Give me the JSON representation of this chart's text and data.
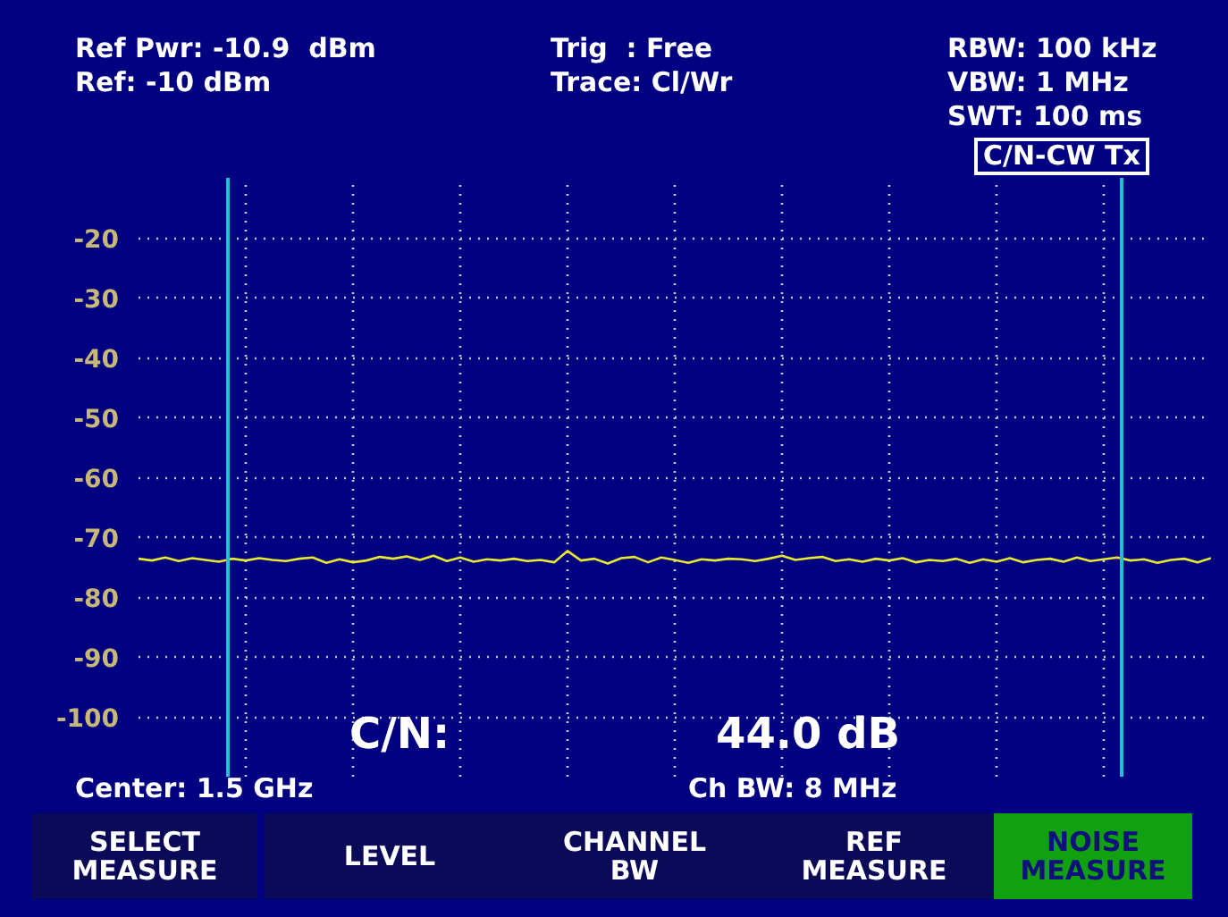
{
  "chart_data": {
    "type": "line",
    "categories": [
      null,
      null,
      null,
      null,
      null,
      null,
      null,
      null,
      null,
      null,
      null,
      null,
      null,
      null,
      null,
      null,
      null,
      null,
      null,
      null,
      null,
      null,
      null,
      null,
      null,
      null,
      null,
      null,
      null,
      null,
      null,
      null,
      null,
      null,
      null,
      null,
      null,
      null,
      null,
      null,
      null,
      null,
      null,
      null,
      null,
      null,
      null,
      null,
      null,
      null,
      null,
      null,
      null,
      null,
      null,
      null,
      null,
      null,
      null,
      null,
      null,
      null,
      null,
      null,
      null,
      null,
      null,
      null,
      null,
      null,
      null,
      null,
      null,
      null,
      null,
      null,
      null,
      null,
      null,
      null,
      null
    ],
    "series": [
      {
        "color": "#e8e830",
        "values": [
          -73.6,
          -73.9,
          -73.4,
          -74.0,
          -73.5,
          -73.8,
          -74.1,
          -73.6,
          -73.9,
          -73.5,
          -73.8,
          -74.0,
          -73.6,
          -73.4,
          -74.3,
          -73.7,
          -74.2,
          -73.9,
          -73.3,
          -73.6,
          -73.2,
          -73.8,
          -73.1,
          -74.0,
          -73.4,
          -74.1,
          -73.7,
          -73.9,
          -73.6,
          -74.0,
          -73.8,
          -74.2,
          -72.3,
          -73.9,
          -73.6,
          -74.4,
          -73.5,
          -73.3,
          -74.2,
          -73.4,
          -73.8,
          -74.3,
          -73.7,
          -73.9,
          -73.6,
          -73.7,
          -74.0,
          -73.6,
          -73.1,
          -73.8,
          -73.5,
          -73.3,
          -74.0,
          -73.7,
          -74.1,
          -73.6,
          -73.9,
          -73.5,
          -74.2,
          -73.8,
          -74.0,
          -73.6,
          -74.3,
          -73.7,
          -74.1,
          -73.5,
          -74.2,
          -73.8,
          -73.6,
          -74.1,
          -73.4,
          -74.0,
          -73.7,
          -73.4,
          -73.9,
          -73.7,
          -74.3,
          -73.8,
          -73.6,
          -74.2,
          -73.5
        ]
      }
    ],
    "ylim": [
      -110,
      -10
    ],
    "yticks": [
      -20,
      -30,
      -40,
      -50,
      -60,
      -70,
      -80,
      -90,
      -100
    ],
    "tick_labels": "y",
    "grid": true,
    "legend": false,
    "annotations": [
      "Ref Pwr: -10.9  dBm",
      "Ref: -10 dBm",
      "Trig  : Free",
      "Trace: Cl/Wr",
      "RBW: 100 kHz",
      "VBW: 1 MHz",
      "SWT: 100 ms",
      "C/N-CW Tx",
      "C/N:",
      "44.0  dB",
      "Center: 1.5 GHz",
      "Ch BW: 8 MHz",
      "SELECT\nMEASURE",
      "LEVEL",
      "CHANNEL\nBW",
      "REF\nMEASURE",
      "NOISE\nMEASURE"
    ]
  }
}
